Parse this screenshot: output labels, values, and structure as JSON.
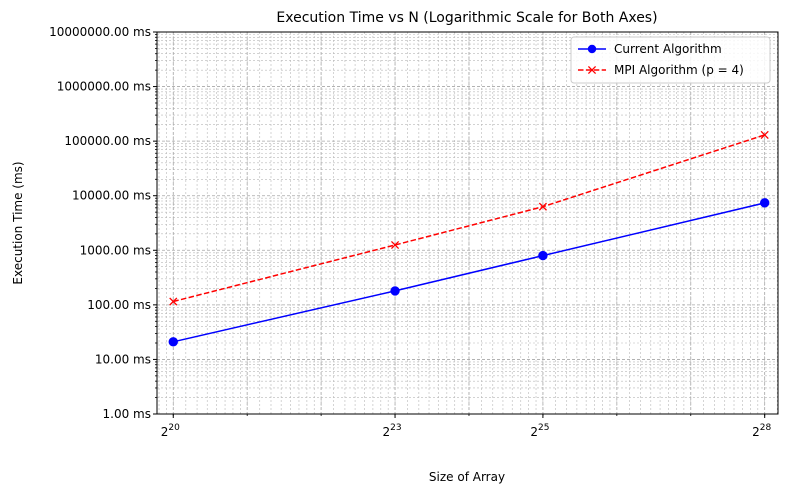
{
  "chart_data": {
    "type": "line",
    "title": "Execution Time vs N (Logarithmic Scale for Both Axes)",
    "xlabel": "Size of Array",
    "ylabel": "Execution Time (ms)",
    "x_scale": "log2",
    "y_scale": "log10",
    "xlim_exponent": [
      19.78,
      28.18
    ],
    "ylim": [
      1,
      10000000
    ],
    "grid": true,
    "legend_position": "top-right",
    "x_ticks": [
      {
        "base": "2",
        "exp": "20",
        "value": 1048576
      },
      {
        "base": "2",
        "exp": "23",
        "value": 8388608
      },
      {
        "base": "2",
        "exp": "25",
        "value": 33554432
      },
      {
        "base": "2",
        "exp": "28",
        "value": 268435456
      }
    ],
    "y_ticks": [
      {
        "label": "1.00 ms",
        "value": 1
      },
      {
        "label": "10.00 ms",
        "value": 10
      },
      {
        "label": "100.00 ms",
        "value": 100
      },
      {
        "label": "1000.00 ms",
        "value": 1000
      },
      {
        "label": "10000.00 ms",
        "value": 10000
      },
      {
        "label": "100000.00 ms",
        "value": 100000
      },
      {
        "label": "1000000.00 ms",
        "value": 1000000
      },
      {
        "label": "10000000.00 ms",
        "value": 10000000
      }
    ],
    "x": [
      1048576,
      8388608,
      33554432,
      268435456
    ],
    "series": [
      {
        "name": "Current Algorithm",
        "values": [
          21,
          180,
          800,
          7400
        ],
        "color": "#0000ff",
        "line_style": "solid",
        "marker": "circle"
      },
      {
        "name": "MPI Algorithm (p = 4)",
        "values": [
          115,
          1250,
          6300,
          130000
        ],
        "color": "#ff0000",
        "line_style": "dashed",
        "marker": "x"
      }
    ]
  }
}
